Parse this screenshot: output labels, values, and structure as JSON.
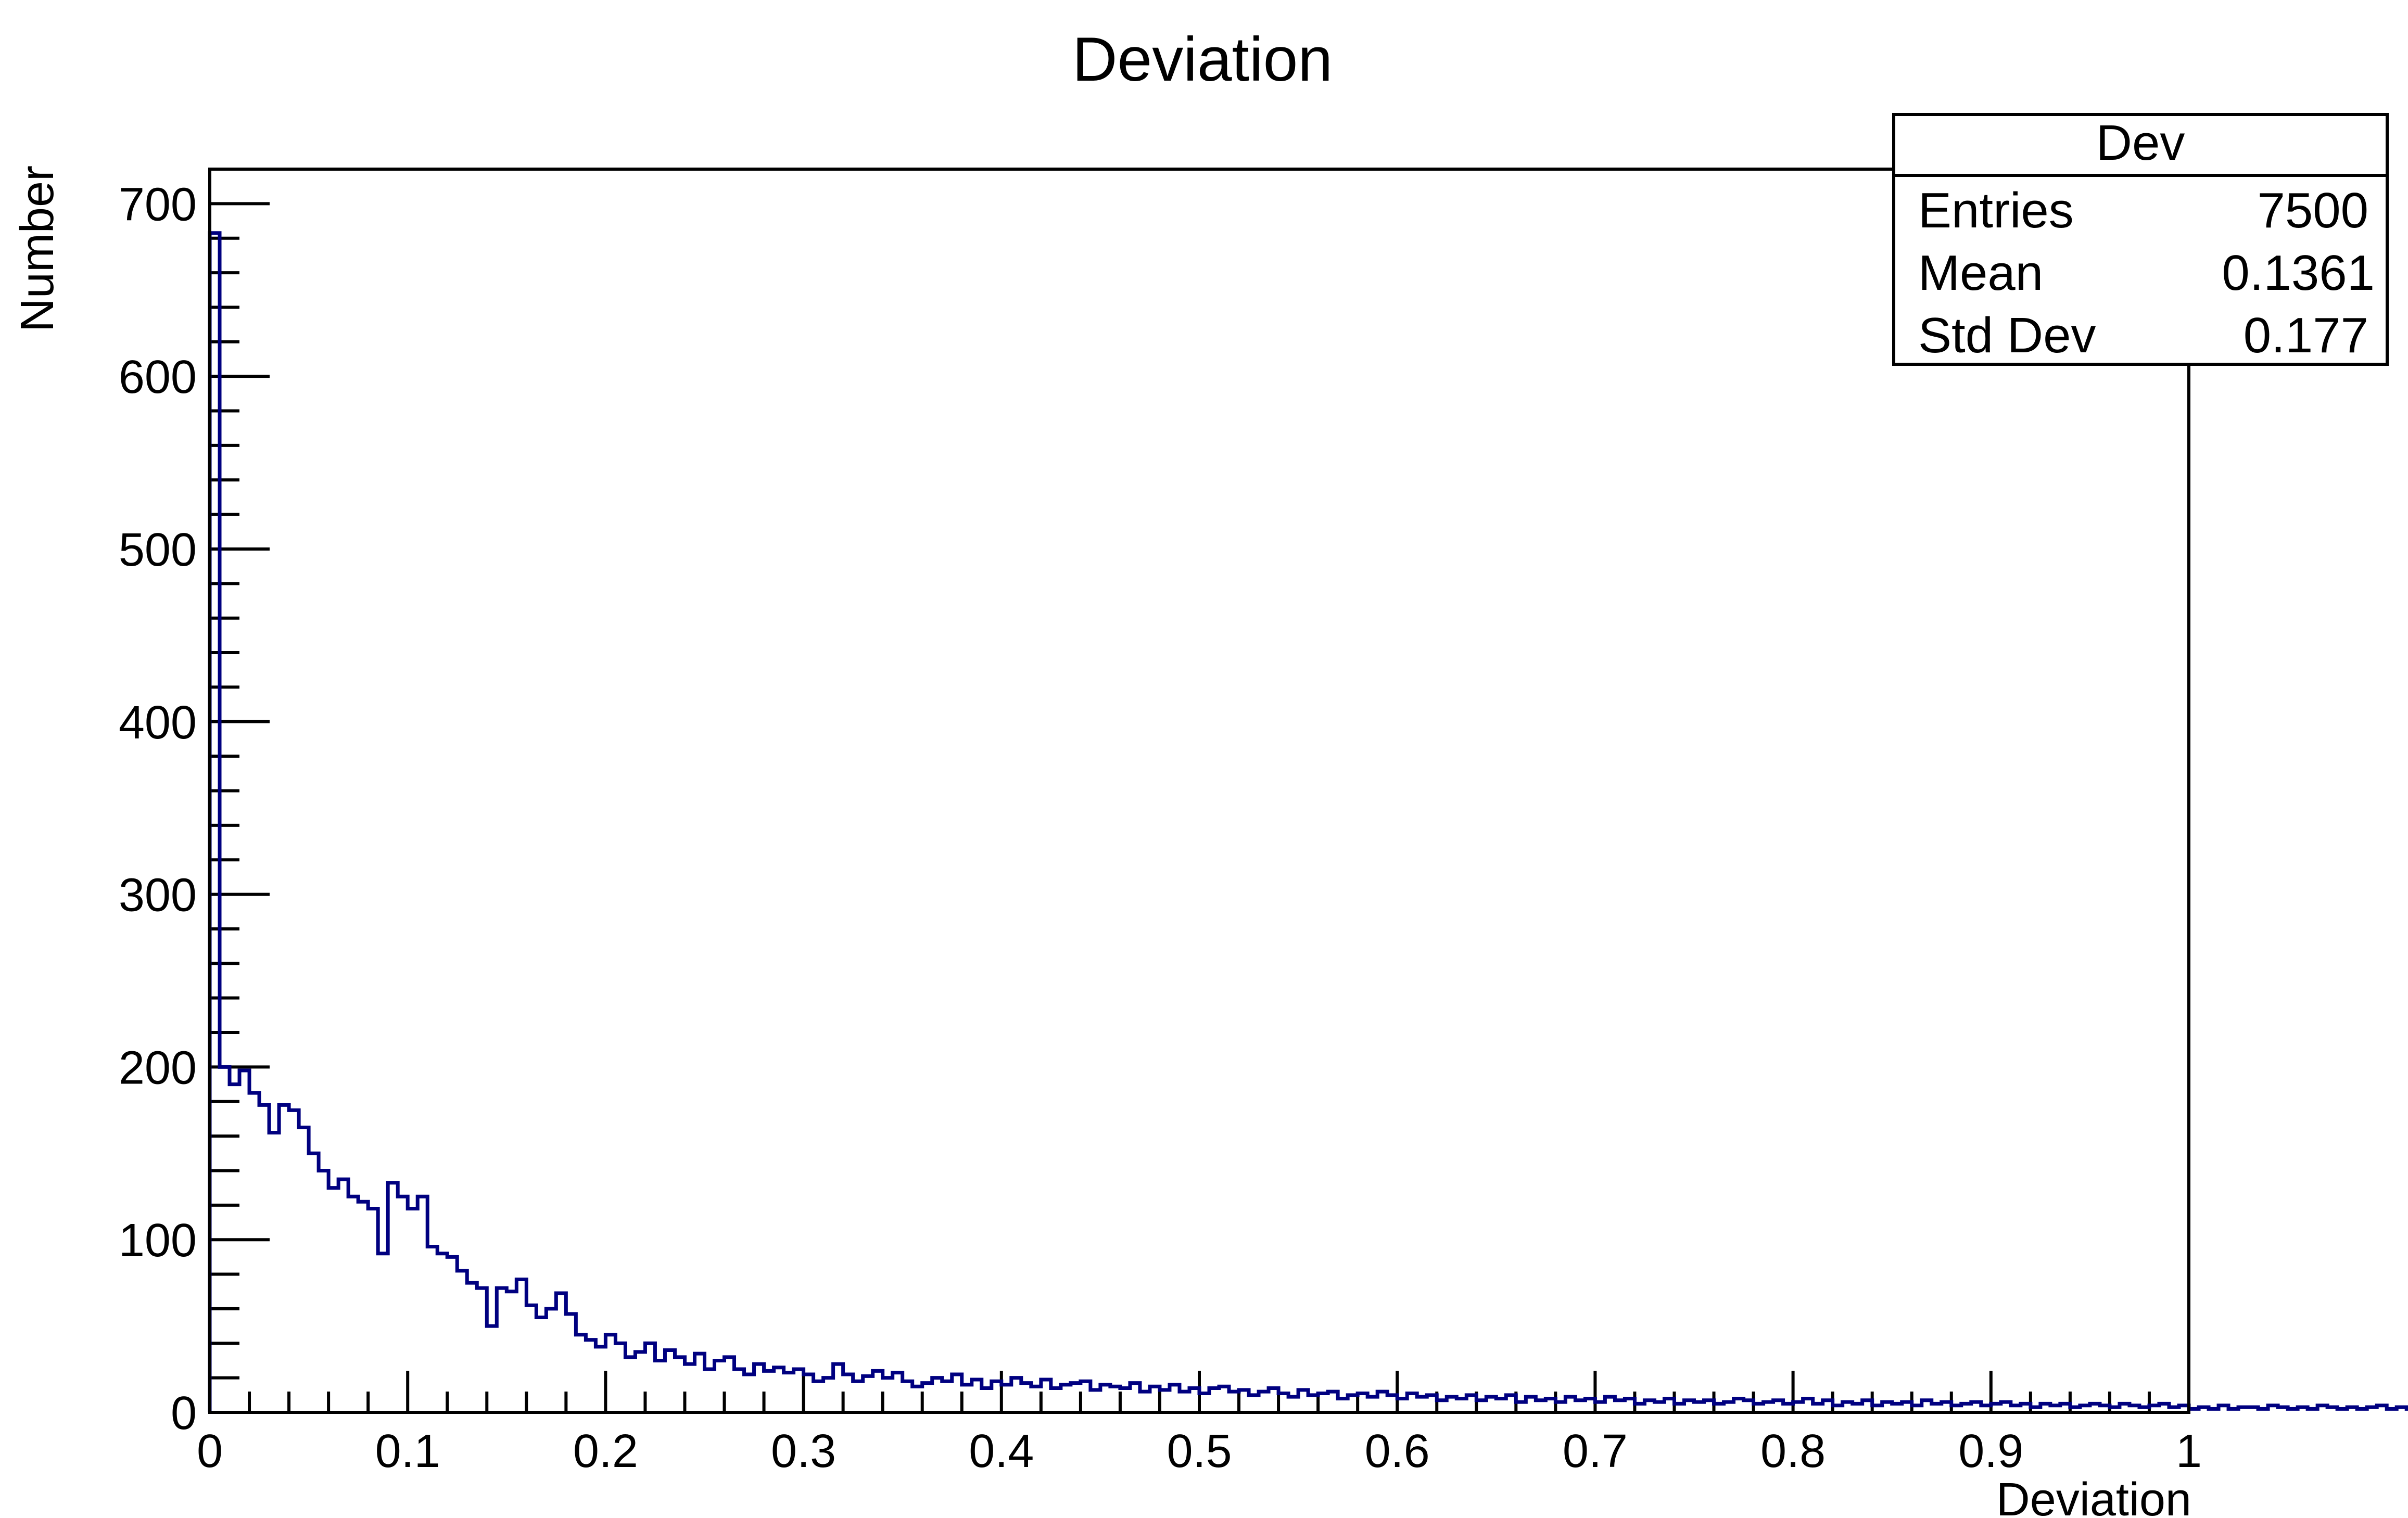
{
  "chart_data": {
    "type": "bar",
    "title": "Deviation",
    "xlabel": "Deviation",
    "ylabel": "Number",
    "xlim": [
      0,
      1
    ],
    "ylim": [
      0,
      720
    ],
    "xticks": [
      "0",
      "0.1",
      "0.2",
      "0.3",
      "0.4",
      "0.5",
      "0.6",
      "0.7",
      "0.8",
      "0.9",
      "1"
    ],
    "yticks": [
      "0",
      "100",
      "200",
      "300",
      "400",
      "500",
      "600",
      "700"
    ],
    "line_color": "#000080",
    "bin_width": 0.005,
    "values": [
      683,
      200,
      190,
      198,
      185,
      178,
      162,
      178,
      175,
      165,
      150,
      140,
      130,
      135,
      125,
      122,
      118,
      92,
      133,
      125,
      118,
      125,
      96,
      92,
      90,
      82,
      75,
      72,
      50,
      72,
      70,
      77,
      62,
      55,
      60,
      69,
      57,
      45,
      42,
      38,
      45,
      40,
      32,
      35,
      40,
      30,
      36,
      32,
      28,
      34,
      25,
      30,
      32,
      25,
      22,
      28,
      24,
      26,
      23,
      25,
      22,
      18,
      20,
      28,
      22,
      18,
      21,
      24,
      20,
      23,
      18,
      15,
      17,
      20,
      18,
      22,
      16,
      19,
      14,
      18,
      16,
      20,
      17,
      15,
      19,
      14,
      16,
      17,
      18,
      13,
      16,
      15,
      14,
      17,
      12,
      15,
      13,
      16,
      12,
      14,
      11,
      14,
      15,
      12,
      13,
      10,
      12,
      14,
      11,
      9,
      13,
      10,
      11,
      12,
      8,
      10,
      11,
      9,
      12,
      10,
      8,
      11,
      9,
      10,
      7,
      9,
      8,
      10,
      7,
      9,
      8,
      10,
      6,
      9,
      7,
      8,
      6,
      9,
      7,
      8,
      6,
      9,
      7,
      8,
      5,
      7,
      6,
      8,
      5,
      7,
      6,
      7,
      5,
      6,
      8,
      7,
      5,
      6,
      7,
      5,
      6,
      8,
      5,
      7,
      4,
      6,
      5,
      7,
      4,
      6,
      5,
      6,
      4,
      7,
      5,
      6,
      4,
      5,
      6,
      4,
      5,
      6,
      4,
      5,
      3,
      5,
      4,
      5,
      3,
      4,
      5,
      4,
      3,
      5,
      4,
      3,
      4,
      5,
      3,
      4,
      2,
      3,
      2,
      4,
      2,
      3,
      3,
      2,
      4,
      3,
      2,
      3,
      2,
      4,
      3,
      2,
      3,
      2,
      3,
      4,
      2,
      3,
      2,
      3,
      2,
      4,
      2,
      3,
      2,
      3,
      3,
      2,
      3,
      2,
      4,
      2,
      3,
      2,
      3,
      2,
      2,
      3,
      2,
      4,
      2,
      3,
      2,
      3,
      2,
      2,
      3,
      2,
      4,
      2,
      3,
      2,
      2,
      3,
      2,
      3,
      2,
      1,
      2,
      2,
      1,
      2,
      1,
      3,
      1,
      2,
      1,
      2,
      1,
      1,
      2,
      1,
      2,
      1,
      3,
      1,
      2,
      1,
      1,
      2,
      1,
      1,
      2,
      1,
      1,
      2,
      1,
      2,
      1,
      1,
      2,
      1,
      1,
      2,
      1,
      1
    ],
    "stats": {
      "name": "Dev",
      "rows": [
        {
          "label": "Entries",
          "value": "7500"
        },
        {
          "label": "Mean",
          "value": "0.1361"
        },
        {
          "label": "Std Dev",
          "value": "0.177"
        }
      ]
    }
  }
}
